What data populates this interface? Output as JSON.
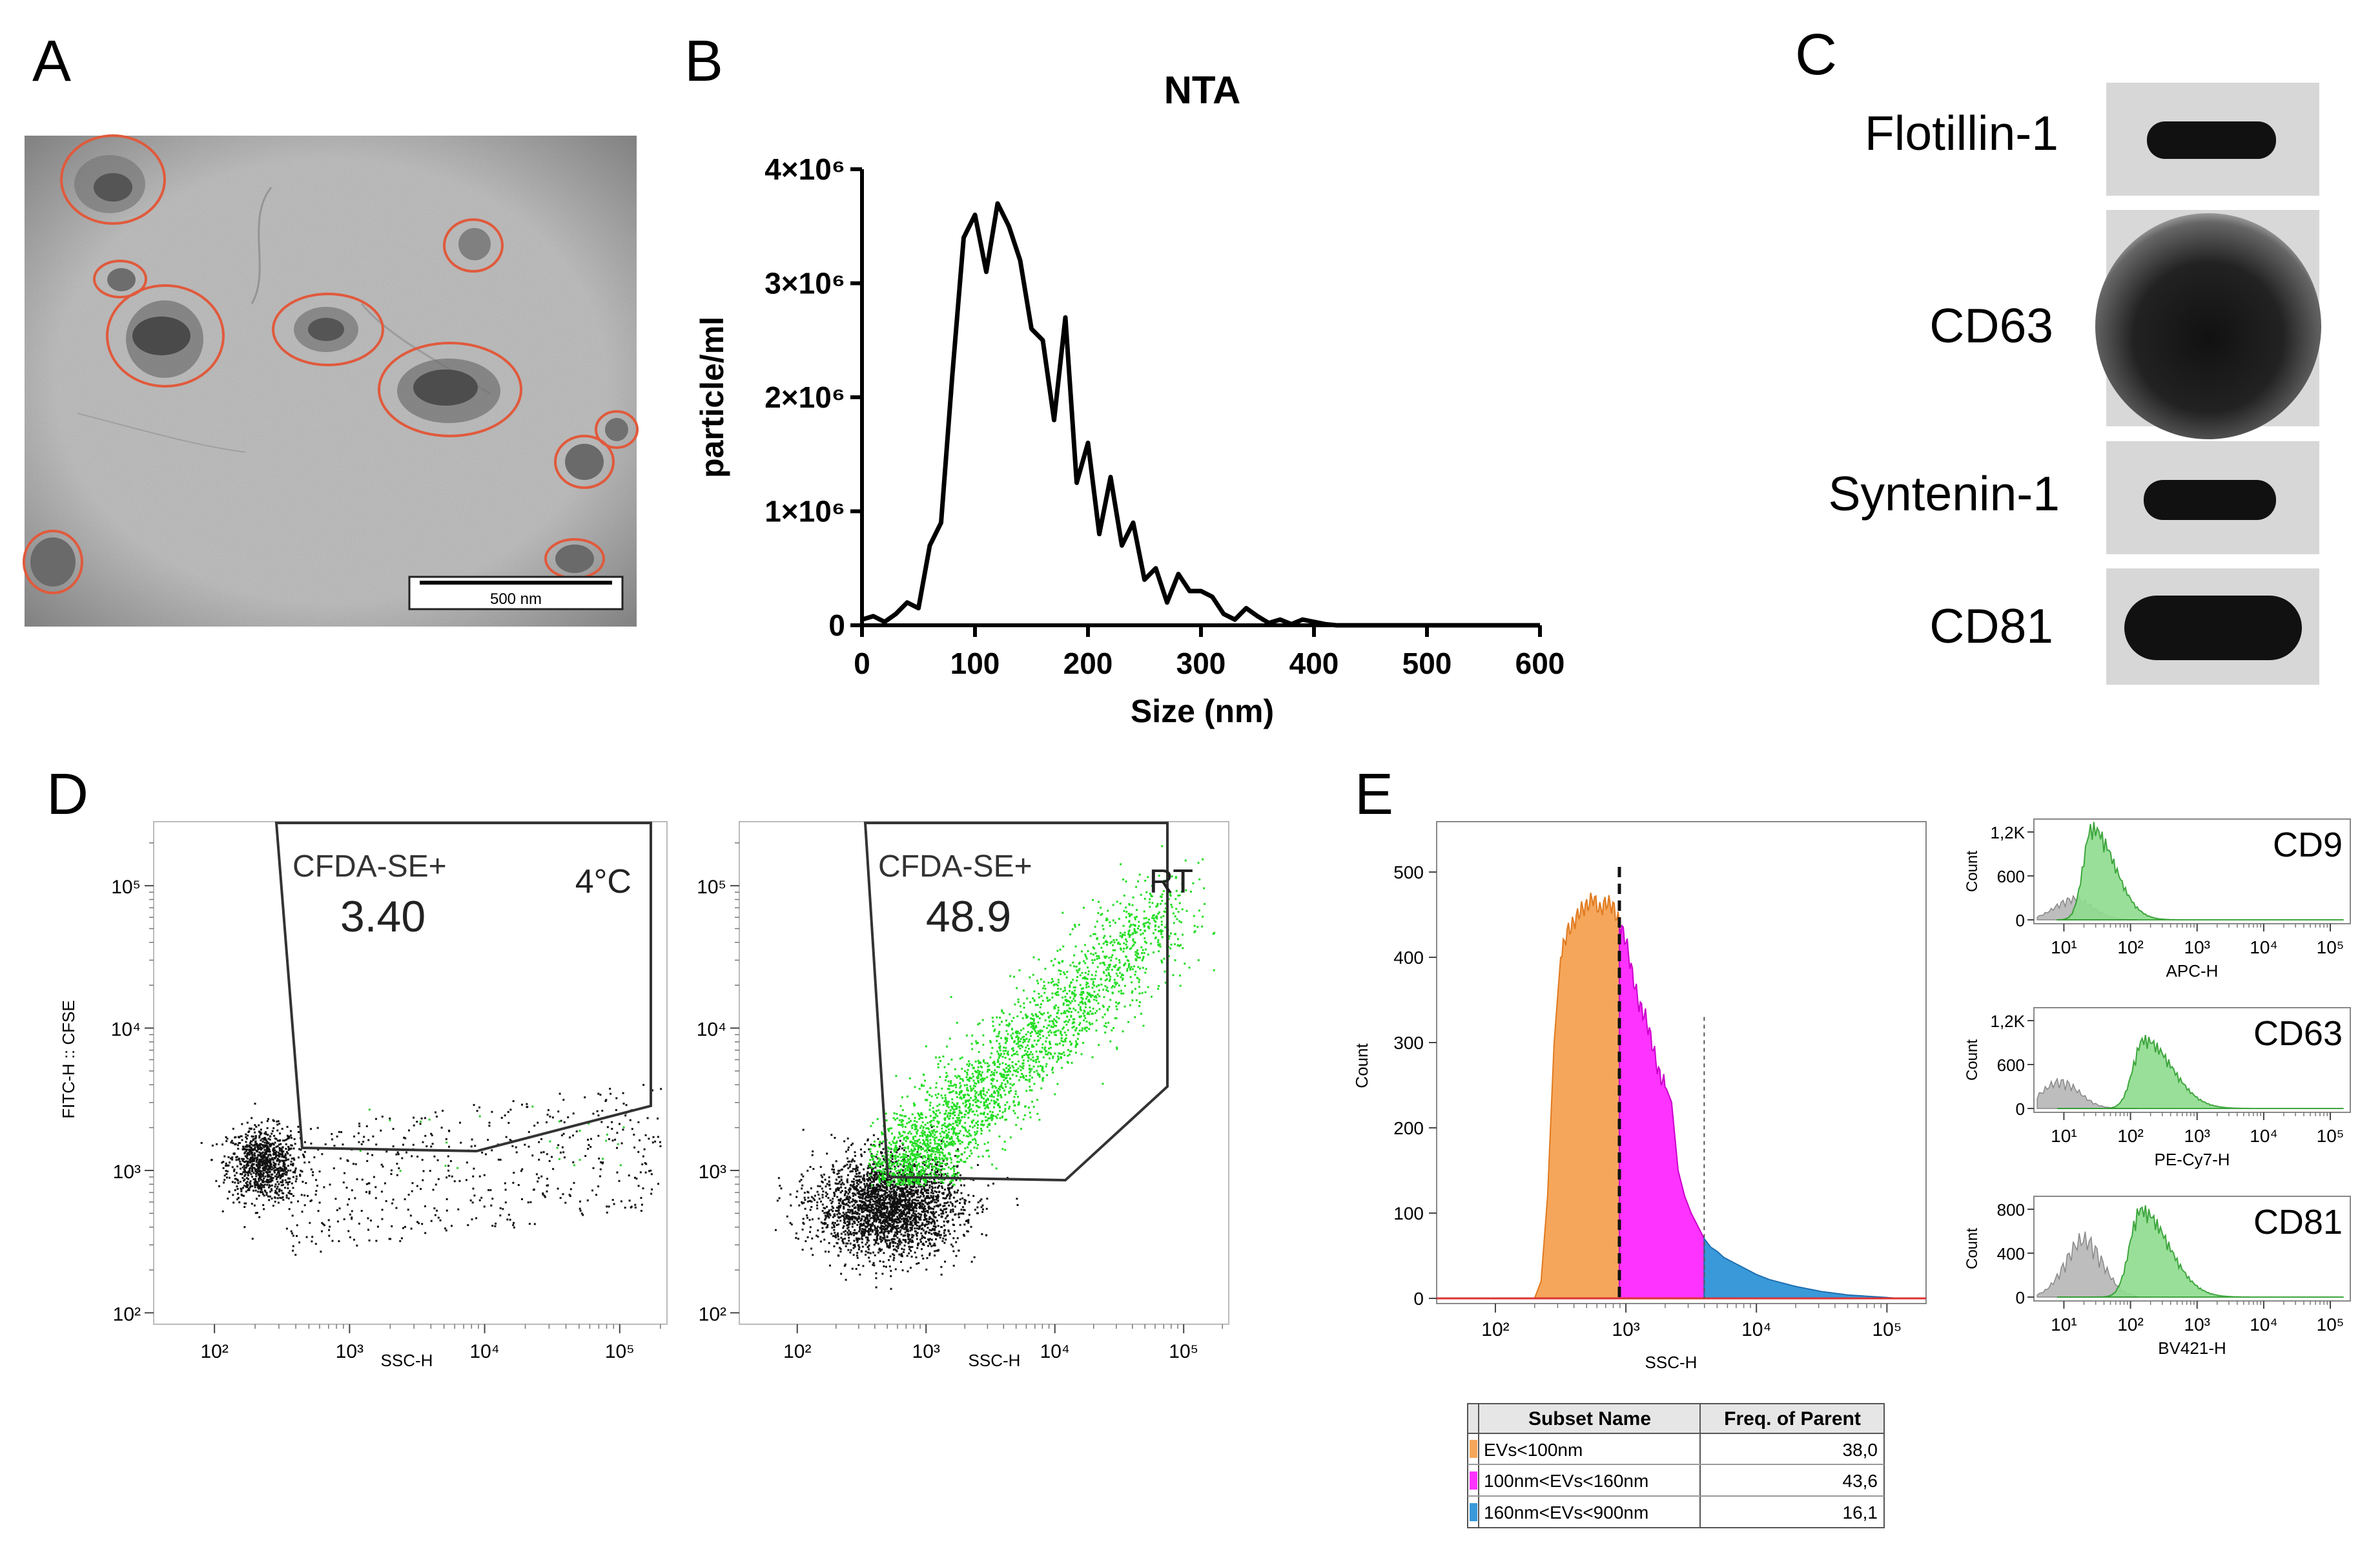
{
  "panels": {
    "A": {
      "letter": "A",
      "scale_bar": "500 nm"
    },
    "B": {
      "letter": "B",
      "chart_data": {
        "type": "line",
        "title": "NTA",
        "xlabel": "Size (nm)",
        "ylabel": "particle/ml",
        "xlim": [
          0,
          600
        ],
        "ylim": [
          0,
          4000000
        ],
        "x_ticks": [
          "0",
          "100",
          "200",
          "300",
          "400",
          "500",
          "600"
        ],
        "y_ticks": [
          "0",
          "1×10⁶",
          "2×10⁶",
          "3×10⁶",
          "4×10⁶"
        ],
        "x": [
          0,
          10,
          20,
          30,
          40,
          50,
          60,
          70,
          80,
          90,
          100,
          110,
          120,
          130,
          140,
          150,
          160,
          170,
          180,
          190,
          200,
          210,
          220,
          230,
          240,
          250,
          260,
          270,
          280,
          290,
          300,
          310,
          320,
          330,
          340,
          350,
          360,
          370,
          380,
          390,
          400,
          410,
          420,
          450,
          500,
          600
        ],
        "y": [
          50000,
          80000,
          30000,
          100000,
          200000,
          150000,
          700000,
          900000,
          2200000,
          3400000,
          3600000,
          3100000,
          3700000,
          3500000,
          3200000,
          2600000,
          2500000,
          1800000,
          2700000,
          1250000,
          1600000,
          800000,
          1300000,
          700000,
          900000,
          400000,
          500000,
          200000,
          450000,
          300000,
          300000,
          250000,
          100000,
          50000,
          150000,
          80000,
          20000,
          50000,
          10000,
          50000,
          30000,
          10000,
          0,
          0,
          0,
          0
        ]
      }
    },
    "C": {
      "letter": "C",
      "bands": [
        "Flotillin-1",
        "CD63",
        "Syntenin-1",
        "CD81"
      ]
    },
    "D": {
      "letter": "D",
      "xlabel": "SSC-H",
      "ylabel": "FITC-H :: CFSE",
      "x_ticks": [
        "10²",
        "10³",
        "10⁴",
        "10⁵"
      ],
      "y_ticks": [
        "10²",
        "10³",
        "10⁴",
        "10⁵"
      ],
      "plots": [
        {
          "gate_label": "CFDA-SE+",
          "value": "3.40",
          "condition": "4°C"
        },
        {
          "gate_label": "CFDA-SE+",
          "value": "48.9",
          "condition": "RT"
        }
      ]
    },
    "E": {
      "letter": "E",
      "main": {
        "chart_data": {
          "type": "area",
          "xlabel": "SSC-H",
          "ylabel": "Count",
          "ylim": [
            0,
            550
          ],
          "x_ticks": [
            "10²",
            "10³",
            "10⁴",
            "10⁵"
          ],
          "y_ticks": [
            "0",
            "100",
            "200",
            "300",
            "400",
            "500"
          ],
          "x_log": [
            2.3,
            2.35,
            2.4,
            2.45,
            2.5,
            2.55,
            2.6,
            2.65,
            2.7,
            2.75,
            2.8,
            2.85,
            2.9,
            2.95,
            3.0,
            3.05,
            3.1,
            3.15,
            3.2,
            3.25,
            3.3,
            3.35,
            3.4,
            3.45,
            3.5,
            3.55,
            3.6,
            3.65,
            3.7,
            3.75,
            3.8,
            3.9,
            4.0,
            4.1,
            4.2,
            4.3,
            4.4,
            4.5,
            4.6,
            4.7,
            4.8,
            4.9,
            5.0,
            5.1,
            5.2
          ],
          "counts": [
            0,
            20,
            120,
            300,
            400,
            430,
            440,
            455,
            460,
            470,
            455,
            465,
            460,
            440,
            420,
            380,
            345,
            330,
            300,
            265,
            250,
            230,
            150,
            120,
            100,
            85,
            70,
            60,
            55,
            48,
            44,
            36,
            28,
            22,
            18,
            14,
            11,
            8,
            6,
            4,
            3,
            2,
            1,
            0,
            0
          ],
          "series": [
            {
              "name": "EVs<100nm",
              "color": "#f5a65b",
              "x_range": [
                2.3,
                2.95
              ]
            },
            {
              "name": "100nm<EVs<160nm",
              "color": "#ff33ff",
              "x_range": [
                2.95,
                3.6
              ]
            },
            {
              "name": "160nm<EVs<900nm",
              "color": "#3a9ad9",
              "x_range": [
                3.6,
                5.2
              ]
            }
          ]
        },
        "table": {
          "headers": [
            "Subset Name",
            "Freq. of Parent"
          ],
          "rows": [
            {
              "name": "EVs<100nm",
              "value": "38,0",
              "color": "#f5a65b"
            },
            {
              "name": "100nm<EVs<160nm",
              "value": "43,6",
              "color": "#ff33ff"
            },
            {
              "name": "160nm<EVs<900nm",
              "value": "16,1",
              "color": "#3a9ad9"
            }
          ]
        }
      },
      "small": [
        {
          "marker": "CD9",
          "xlabel": "APC-H",
          "y_ticks": [
            "0",
            "600",
            "1,2K"
          ],
          "ylabel": "Count"
        },
        {
          "marker": "CD63",
          "xlabel": "PE-Cy7-H",
          "y_ticks": [
            "0",
            "600",
            "1,2K"
          ],
          "ylabel": "Count"
        },
        {
          "marker": "CD81",
          "xlabel": "BV421-H",
          "y_ticks": [
            "0",
            "400",
            "800"
          ],
          "ylabel": "Count"
        }
      ],
      "small_x_ticks": [
        "10¹",
        "10²",
        "10³",
        "10⁴",
        "10⁵"
      ]
    }
  }
}
